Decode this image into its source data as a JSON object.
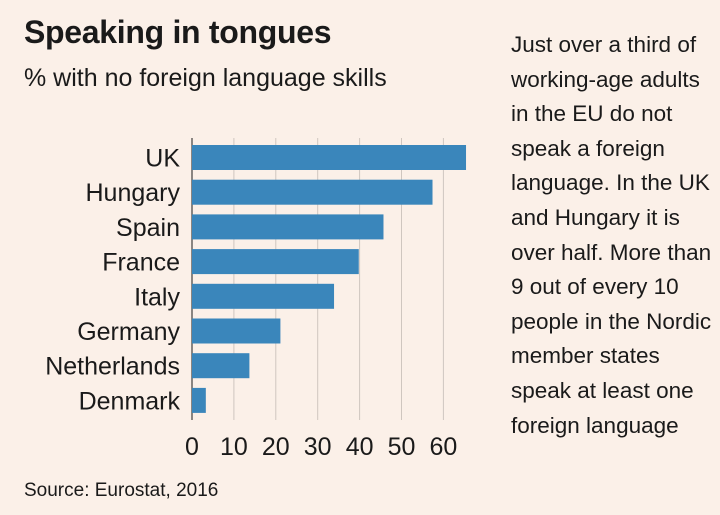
{
  "title": "Speaking in tongues",
  "subtitle": "% with no foreign language skills",
  "source": "Source: Eurostat, 2016",
  "note": "Just over a third of working-age adults in the EU do not speak a foreign language. In the UK and Hungary it is over half. More than 9 out of every 10 people in the Nordic member states speak at least one foreign language",
  "colors": {
    "bar": "#3a86bb",
    "background": "#fbf0e8"
  },
  "chart_data": {
    "type": "bar",
    "orientation": "horizontal",
    "title": "Speaking in tongues",
    "subtitle": "% with no foreign language skills",
    "categories": [
      "UK",
      "Hungary",
      "Spain",
      "France",
      "Italy",
      "Germany",
      "Netherlands",
      "Denmark"
    ],
    "values": [
      65.4,
      57.4,
      45.7,
      39.8,
      33.9,
      21.1,
      13.7,
      3.3
    ],
    "xlim": [
      0,
      65
    ],
    "xticks": [
      0,
      10,
      20,
      30,
      40,
      50,
      60
    ],
    "grid": true,
    "legend": "none"
  }
}
